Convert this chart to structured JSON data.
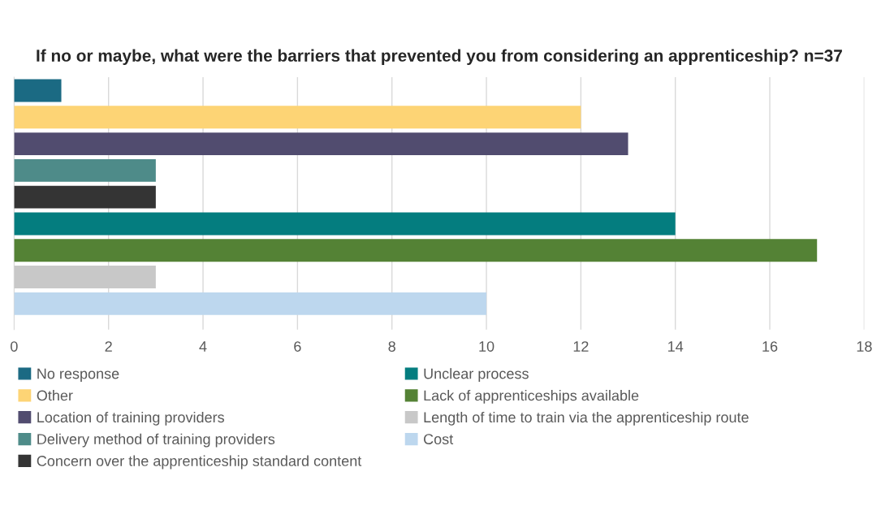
{
  "chart_data": {
    "type": "bar",
    "orientation": "horizontal",
    "title": "If no or maybe, what were the barriers that prevented you from considering an apprenticeship? n=37",
    "categories": [
      null
    ],
    "series": [
      {
        "name": "No response",
        "color": "#1b6a83",
        "values": [
          1
        ]
      },
      {
        "name": "Other",
        "color": "#fdd475",
        "values": [
          12
        ]
      },
      {
        "name": "Location of training providers",
        "color": "#514c6f",
        "values": [
          13
        ]
      },
      {
        "name": "Delivery method of training providers",
        "color": "#4e8b89",
        "values": [
          3
        ]
      },
      {
        "name": "Concern over the apprenticeship standard content",
        "color": "#343434",
        "values": [
          3
        ]
      },
      {
        "name": "Unclear process",
        "color": "#047d7f",
        "values": [
          14
        ]
      },
      {
        "name": "Lack of apprenticeships available",
        "color": "#548235",
        "values": [
          17
        ]
      },
      {
        "name": "Length of time to train via the apprenticeship route",
        "color": "#c8c8c8",
        "values": [
          3
        ]
      },
      {
        "name": "Cost",
        "color": "#bdd7ee",
        "values": [
          10
        ]
      }
    ],
    "xlim": [
      0,
      18
    ],
    "xticks": [
      0,
      2,
      4,
      6,
      8,
      10,
      12,
      14,
      16,
      18
    ],
    "grid": "x",
    "legend": "bottom",
    "tick_labels": "x"
  }
}
